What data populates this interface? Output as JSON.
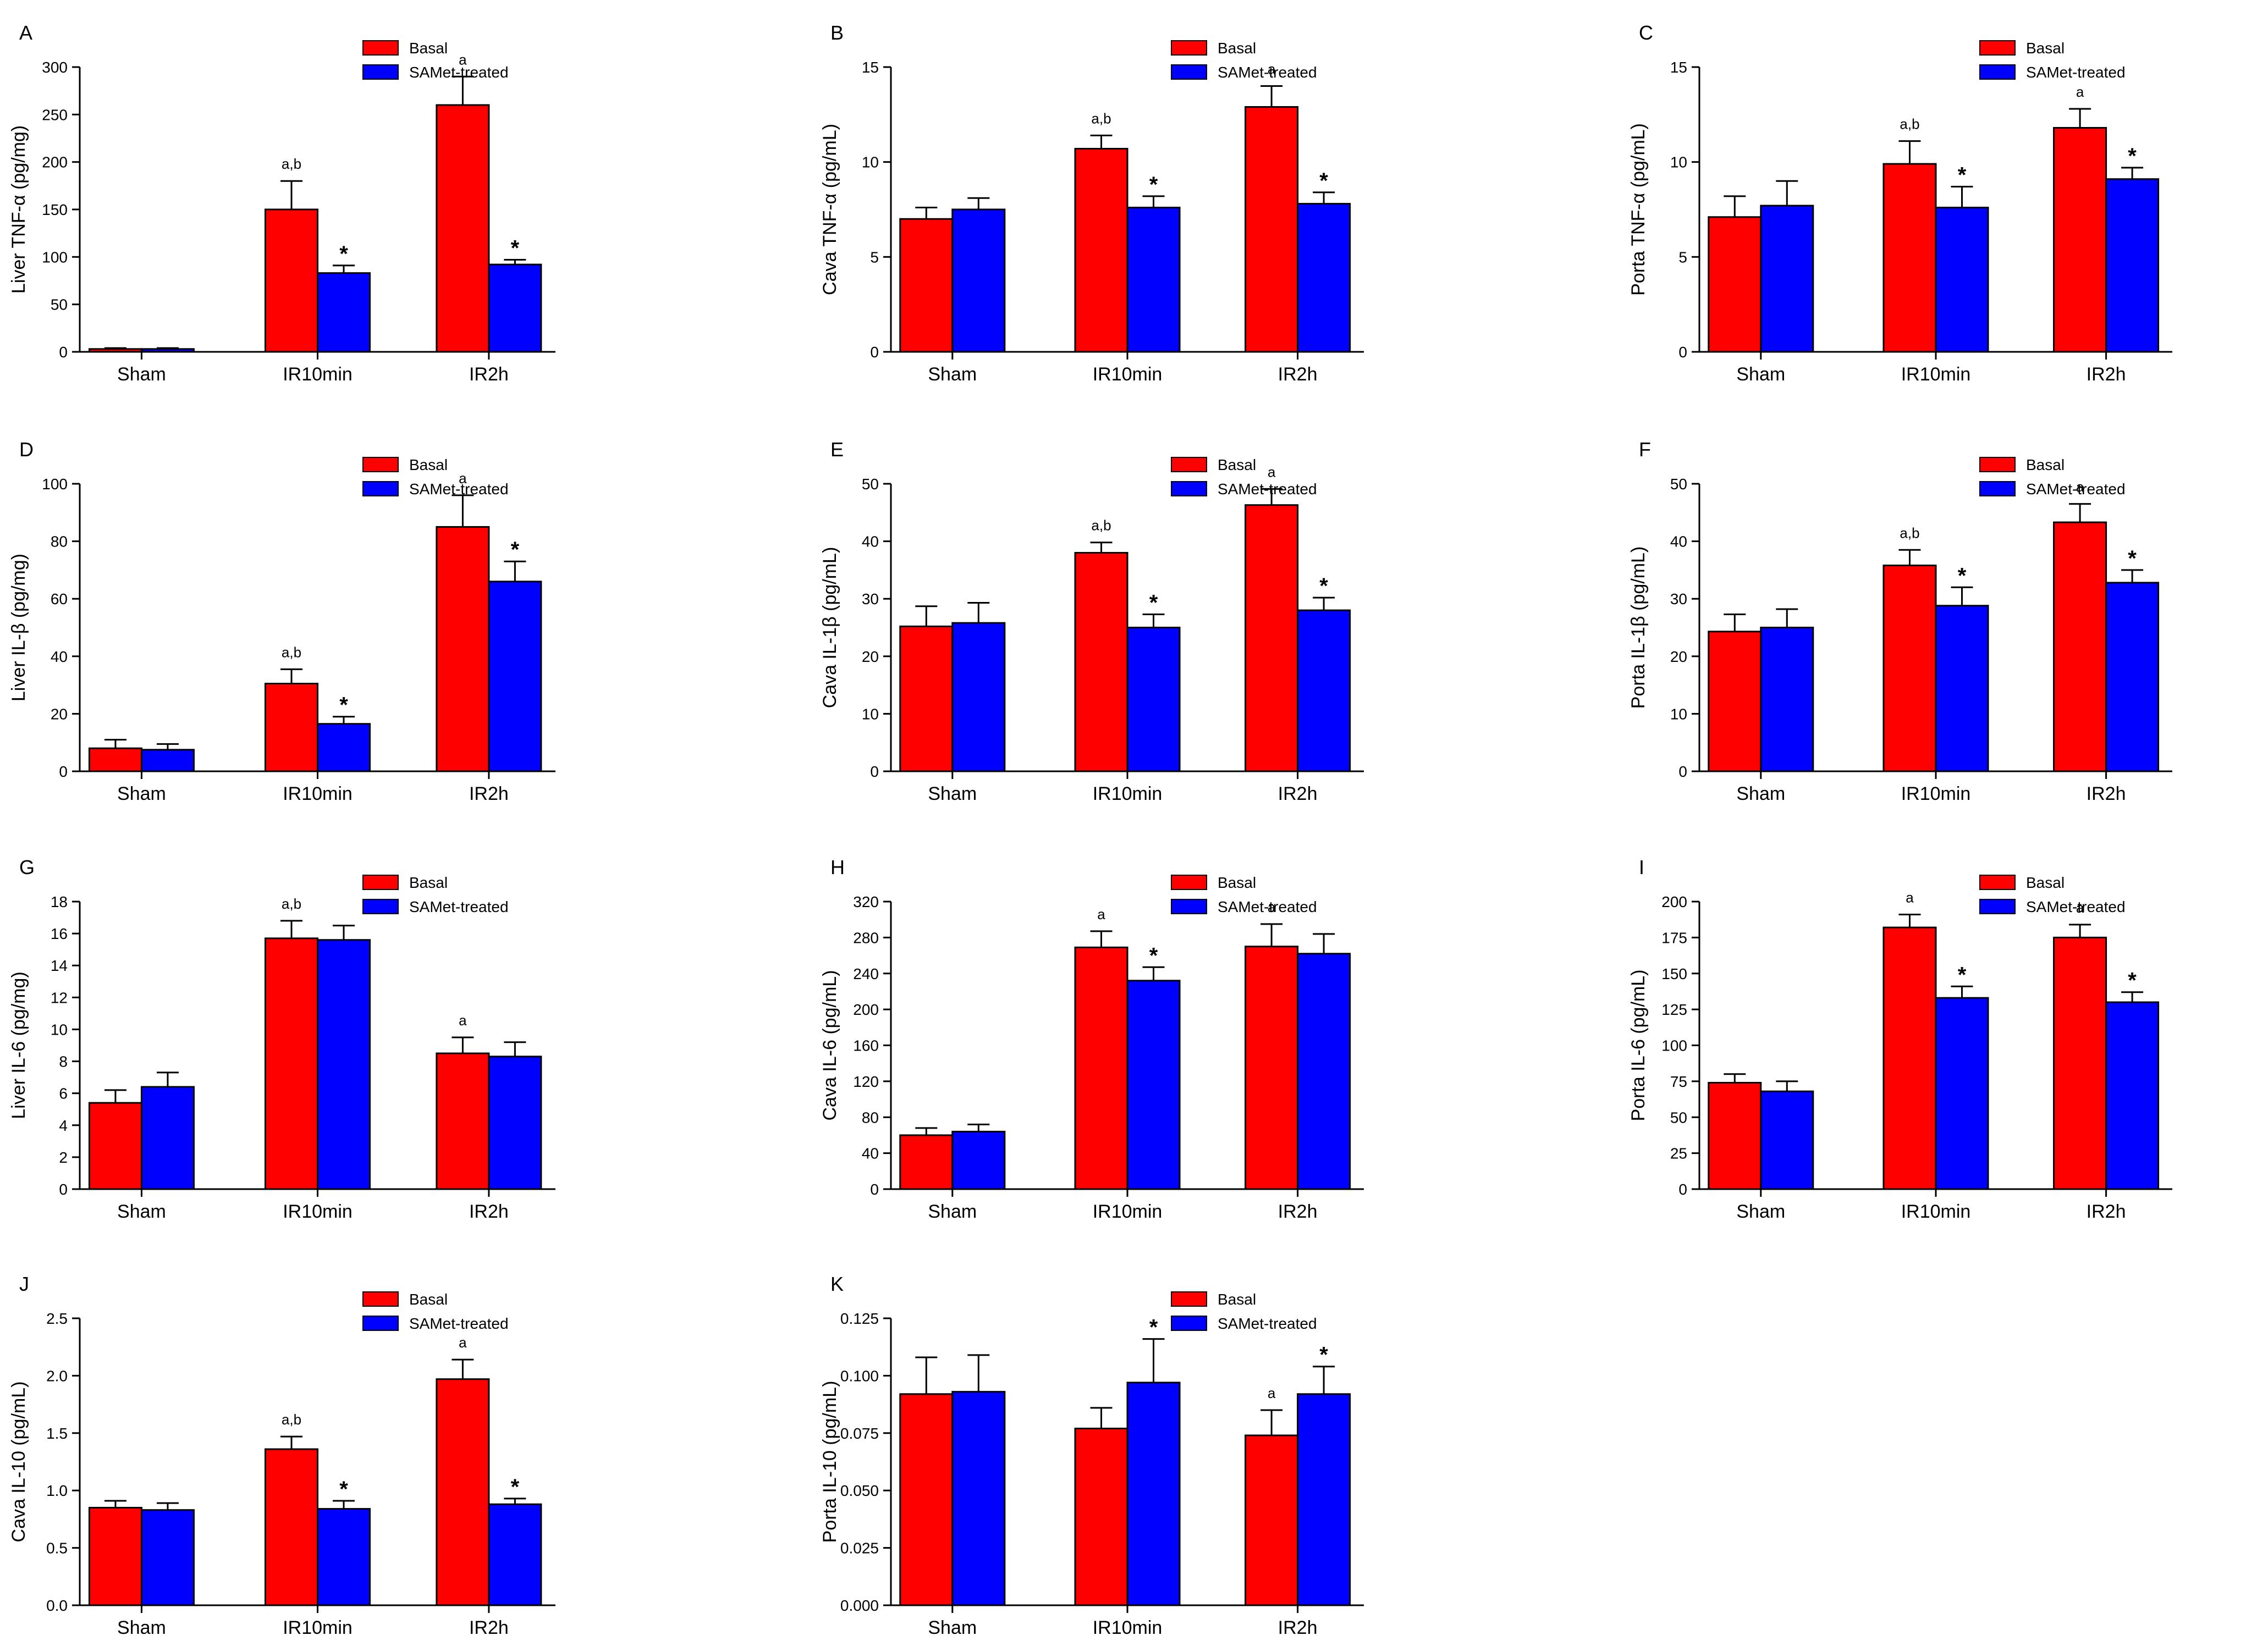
{
  "series_colors": {
    "Basal": "#ff0000",
    "SAMet-treated": "#0000ff"
  },
  "chart_data": [
    {
      "panel": "A",
      "type": "bar",
      "ylabel": "Liver TNF-α (pg/mg)",
      "categories": [
        "Sham",
        "IR10min",
        "IR2h"
      ],
      "series": [
        {
          "name": "Basal",
          "values": [
            3,
            150,
            260
          ],
          "errors": [
            1,
            30,
            30
          ]
        },
        {
          "name": "SAMet-treated",
          "values": [
            3,
            83,
            92
          ],
          "errors": [
            1,
            8,
            5
          ]
        }
      ],
      "ylim": [
        0,
        300
      ],
      "yticks": [
        "0",
        "50",
        "100",
        "150",
        "200",
        "250",
        "300"
      ],
      "annotations": [
        {
          "category": 1,
          "series": 0,
          "text": "a,b"
        },
        {
          "category": 1,
          "series": 1,
          "text": "*"
        },
        {
          "category": 2,
          "series": 0,
          "text": "a"
        },
        {
          "category": 2,
          "series": 1,
          "text": "*"
        }
      ],
      "legend_position": "top-right"
    },
    {
      "panel": "B",
      "type": "bar",
      "ylabel": "Cava TNF-α (pg/mL)",
      "categories": [
        "Sham",
        "IR10min",
        "IR2h"
      ],
      "series": [
        {
          "name": "Basal",
          "values": [
            7.0,
            10.7,
            12.9
          ],
          "errors": [
            0.6,
            0.7,
            1.1
          ]
        },
        {
          "name": "SAMet-treated",
          "values": [
            7.5,
            7.6,
            7.8
          ],
          "errors": [
            0.6,
            0.6,
            0.6
          ]
        }
      ],
      "ylim": [
        0,
        15
      ],
      "yticks": [
        "0",
        "5",
        "10",
        "15"
      ],
      "annotations": [
        {
          "category": 1,
          "series": 0,
          "text": "a,b"
        },
        {
          "category": 1,
          "series": 1,
          "text": "*"
        },
        {
          "category": 2,
          "series": 0,
          "text": "a"
        },
        {
          "category": 2,
          "series": 1,
          "text": "*"
        }
      ],
      "legend_position": "top-right"
    },
    {
      "panel": "C",
      "type": "bar",
      "ylabel": "Porta TNF-α (pg/mL)",
      "categories": [
        "Sham",
        "IR10min",
        "IR2h"
      ],
      "series": [
        {
          "name": "Basal",
          "values": [
            7.1,
            9.9,
            11.8
          ],
          "errors": [
            1.1,
            1.2,
            1.0
          ]
        },
        {
          "name": "SAMet-treated",
          "values": [
            7.7,
            7.6,
            9.1
          ],
          "errors": [
            1.3,
            1.1,
            0.6
          ]
        }
      ],
      "ylim": [
        0,
        15
      ],
      "yticks": [
        "0",
        "5",
        "10",
        "15"
      ],
      "annotations": [
        {
          "category": 1,
          "series": 0,
          "text": "a,b"
        },
        {
          "category": 1,
          "series": 1,
          "text": "*"
        },
        {
          "category": 2,
          "series": 0,
          "text": "a"
        },
        {
          "category": 2,
          "series": 1,
          "text": "*"
        }
      ],
      "legend_position": "top-right"
    },
    {
      "panel": "D",
      "type": "bar",
      "ylabel": "Liver IL-β (pg/mg)",
      "categories": [
        "Sham",
        "IR10min",
        "IR2h"
      ],
      "series": [
        {
          "name": "Basal",
          "values": [
            8,
            30.5,
            85
          ],
          "errors": [
            3,
            5,
            11
          ]
        },
        {
          "name": "SAMet-treated",
          "values": [
            7.5,
            16.5,
            66
          ],
          "errors": [
            2,
            2.5,
            7
          ]
        }
      ],
      "ylim": [
        0,
        100
      ],
      "yticks": [
        "0",
        "20",
        "40",
        "60",
        "80",
        "100"
      ],
      "annotations": [
        {
          "category": 1,
          "series": 0,
          "text": "a,b"
        },
        {
          "category": 1,
          "series": 1,
          "text": "*"
        },
        {
          "category": 2,
          "series": 0,
          "text": "a"
        },
        {
          "category": 2,
          "series": 1,
          "text": "*"
        }
      ],
      "legend_position": "top-right"
    },
    {
      "panel": "E",
      "type": "bar",
      "ylabel": "Cava IL-1β (pg/mL)",
      "categories": [
        "Sham",
        "IR10min",
        "IR2h"
      ],
      "series": [
        {
          "name": "Basal",
          "values": [
            25.2,
            38,
            46.3
          ],
          "errors": [
            3.5,
            1.8,
            2.8
          ]
        },
        {
          "name": "SAMet-treated",
          "values": [
            25.8,
            25,
            28
          ],
          "errors": [
            3.5,
            2.3,
            2.2
          ]
        }
      ],
      "ylim": [
        0,
        50
      ],
      "yticks": [
        "0",
        "10",
        "20",
        "30",
        "40",
        "50"
      ],
      "annotations": [
        {
          "category": 1,
          "series": 0,
          "text": "a,b"
        },
        {
          "category": 1,
          "series": 1,
          "text": "*"
        },
        {
          "category": 2,
          "series": 0,
          "text": "a"
        },
        {
          "category": 2,
          "series": 1,
          "text": "*"
        }
      ],
      "legend_position": "top-right"
    },
    {
      "panel": "F",
      "type": "bar",
      "ylabel": "Porta IL-1β (pg/mL)",
      "categories": [
        "Sham",
        "IR10min",
        "IR2h"
      ],
      "series": [
        {
          "name": "Basal",
          "values": [
            24.3,
            35.8,
            43.3
          ],
          "errors": [
            3,
            2.7,
            3.2
          ]
        },
        {
          "name": "SAMet-treated",
          "values": [
            25,
            28.8,
            32.8
          ],
          "errors": [
            3.2,
            3.2,
            2.2
          ]
        }
      ],
      "ylim": [
        0,
        50
      ],
      "yticks": [
        "0",
        "10",
        "20",
        "30",
        "40",
        "50"
      ],
      "annotations": [
        {
          "category": 1,
          "series": 0,
          "text": "a,b"
        },
        {
          "category": 1,
          "series": 1,
          "text": "*"
        },
        {
          "category": 2,
          "series": 0,
          "text": "a"
        },
        {
          "category": 2,
          "series": 1,
          "text": "*"
        }
      ],
      "legend_position": "top-right"
    },
    {
      "panel": "G",
      "type": "bar",
      "ylabel": "Liver IL-6 (pg/mg)",
      "categories": [
        "Sham",
        "IR10min",
        "IR2h"
      ],
      "series": [
        {
          "name": "Basal",
          "values": [
            5.4,
            15.7,
            8.5
          ],
          "errors": [
            0.8,
            1.1,
            1.0
          ]
        },
        {
          "name": "SAMet-treated",
          "values": [
            6.4,
            15.6,
            8.3
          ],
          "errors": [
            0.9,
            0.9,
            0.9
          ]
        }
      ],
      "ylim": [
        0,
        18
      ],
      "yticks": [
        "0",
        "2",
        "4",
        "6",
        "8",
        "10",
        "12",
        "14",
        "16",
        "18"
      ],
      "annotations": [
        {
          "category": 1,
          "series": 0,
          "text": "a,b"
        },
        {
          "category": 2,
          "series": 0,
          "text": "a"
        }
      ],
      "legend_position": "top-right"
    },
    {
      "panel": "H",
      "type": "bar",
      "ylabel": "Cava IL-6 (pg/mL)",
      "categories": [
        "Sham",
        "IR10min",
        "IR2h"
      ],
      "series": [
        {
          "name": "Basal",
          "values": [
            60,
            269,
            270
          ],
          "errors": [
            8,
            18,
            25
          ]
        },
        {
          "name": "SAMet-treated",
          "values": [
            64,
            232,
            262
          ],
          "errors": [
            8,
            15,
            22
          ]
        }
      ],
      "ylim": [
        0,
        320
      ],
      "yticks": [
        "0",
        "40",
        "80",
        "120",
        "160",
        "200",
        "240",
        "280",
        "320"
      ],
      "annotations": [
        {
          "category": 1,
          "series": 0,
          "text": "a"
        },
        {
          "category": 1,
          "series": 1,
          "text": "*"
        },
        {
          "category": 2,
          "series": 0,
          "text": "a"
        }
      ],
      "legend_position": "top-right"
    },
    {
      "panel": "I",
      "type": "bar",
      "ylabel": "Porta IL-6 (pg/mL)",
      "categories": [
        "Sham",
        "IR10min",
        "IR2h"
      ],
      "series": [
        {
          "name": "Basal",
          "values": [
            74,
            182,
            175
          ],
          "errors": [
            6,
            9,
            9
          ]
        },
        {
          "name": "SAMet-treated",
          "values": [
            68,
            133,
            130
          ],
          "errors": [
            7,
            8,
            7
          ]
        }
      ],
      "ylim": [
        0,
        200
      ],
      "yticks": [
        "0",
        "25",
        "50",
        "75",
        "100",
        "125",
        "150",
        "175",
        "200"
      ],
      "annotations": [
        {
          "category": 1,
          "series": 0,
          "text": "a"
        },
        {
          "category": 1,
          "series": 1,
          "text": "*"
        },
        {
          "category": 2,
          "series": 0,
          "text": "a"
        },
        {
          "category": 2,
          "series": 1,
          "text": "*"
        }
      ],
      "legend_position": "top-right"
    },
    {
      "panel": "J",
      "type": "bar",
      "ylabel": "Cava IL-10 (pg/mL)",
      "categories": [
        "Sham",
        "IR10min",
        "IR2h"
      ],
      "series": [
        {
          "name": "Basal",
          "values": [
            0.85,
            1.36,
            1.97
          ],
          "errors": [
            0.06,
            0.11,
            0.17
          ]
        },
        {
          "name": "SAMet-treated",
          "values": [
            0.83,
            0.84,
            0.88
          ],
          "errors": [
            0.06,
            0.07,
            0.05
          ]
        }
      ],
      "ylim": [
        0,
        2.5
      ],
      "yticks": [
        "0.0",
        "0.5",
        "1.0",
        "1.5",
        "2.0",
        "2.5"
      ],
      "annotations": [
        {
          "category": 1,
          "series": 0,
          "text": "a,b"
        },
        {
          "category": 1,
          "series": 1,
          "text": "*"
        },
        {
          "category": 2,
          "series": 0,
          "text": "a"
        },
        {
          "category": 2,
          "series": 1,
          "text": "*"
        }
      ],
      "legend_position": "top-right"
    },
    {
      "panel": "K",
      "type": "bar",
      "ylabel": "Porta IL-10 (pg/mL)",
      "categories": [
        "Sham",
        "IR10min",
        "IR2h"
      ],
      "series": [
        {
          "name": "Basal",
          "values": [
            0.092,
            0.077,
            0.074
          ],
          "errors": [
            0.016,
            0.009,
            0.011
          ]
        },
        {
          "name": "SAMet-treated",
          "values": [
            0.093,
            0.097,
            0.092
          ],
          "errors": [
            0.016,
            0.019,
            0.012
          ]
        }
      ],
      "ylim": [
        0,
        0.125
      ],
      "yticks": [
        "0.000",
        "0.025",
        "0.050",
        "0.075",
        "0.100",
        "0.125"
      ],
      "annotations": [
        {
          "category": 1,
          "series": 1,
          "text": "*"
        },
        {
          "category": 2,
          "series": 0,
          "text": "a"
        },
        {
          "category": 2,
          "series": 1,
          "text": "*"
        }
      ],
      "legend_position": "top-right"
    }
  ]
}
